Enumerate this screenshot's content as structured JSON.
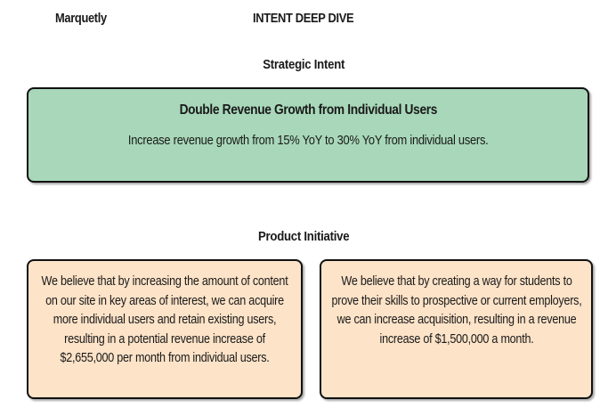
{
  "header": {
    "brand": "Marquetly",
    "title": "INTENT DEEP DIVE"
  },
  "strategic_intent": {
    "heading": "Strategic Intent",
    "title": "Double Revenue Growth from Individual Users",
    "description": "Increase revenue growth from 15% YoY to 30% YoY from individual users.",
    "color": "#a8d8b9"
  },
  "product_initiative": {
    "heading": "Product Initiative",
    "color": "#fde3c8",
    "items": [
      {
        "text": "We believe that by increasing the amount of content on our site in key areas of interest, we can acquire more individual users and retain existing users, resulting in a potential revenue increase of $2,655,000 per month from individual users."
      },
      {
        "text": "We believe that by creating a way for students to prove their skills to prospective or current employers, we can increase acquisition, resulting in a revenue increase of $1,500,000 a month."
      }
    ]
  }
}
